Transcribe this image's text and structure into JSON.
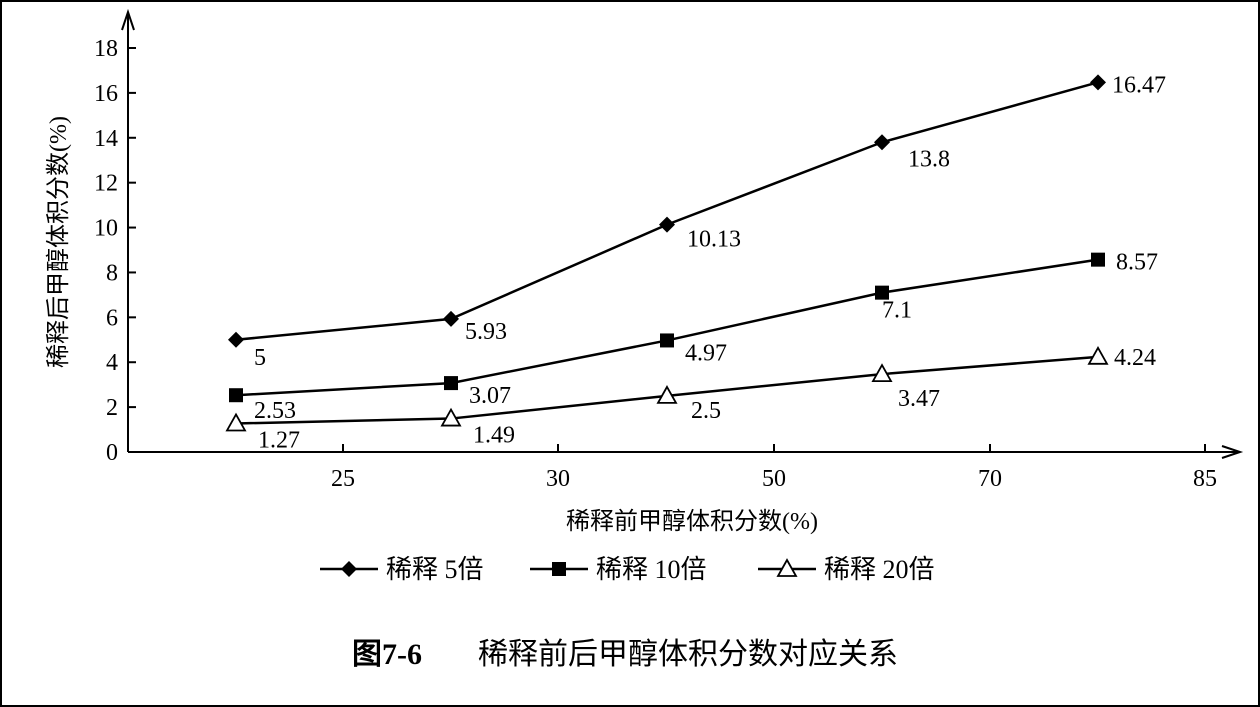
{
  "chart_data": {
    "type": "line",
    "title": "",
    "xlabel": "稀释前甲醇体积分数(%)",
    "ylabel": "稀释后甲醇体积分数(%)",
    "ylim": [
      0,
      18
    ],
    "yticks": [
      "0",
      "2",
      "4",
      "6",
      "8",
      "10",
      "12",
      "14",
      "16",
      "18"
    ],
    "x_tick_labels": [
      "25",
      "30",
      "50",
      "70",
      "85"
    ],
    "x_points": [
      "",
      "",
      "",
      "",
      ""
    ],
    "series": [
      {
        "name": "稀释 5倍",
        "marker": "diamond-filled",
        "values": [
          5,
          5.93,
          10.13,
          13.8,
          16.47
        ],
        "labels": [
          "5",
          "5.93",
          "10.13",
          "13.8",
          "16.47"
        ]
      },
      {
        "name": "稀释 10倍",
        "marker": "square-filled",
        "values": [
          2.53,
          3.07,
          4.97,
          7.1,
          8.57
        ],
        "labels": [
          "2.53",
          "3.07",
          "4.97",
          "7.1",
          "8.57"
        ]
      },
      {
        "name": "稀释 20倍",
        "marker": "triangle-open",
        "values": [
          1.27,
          1.49,
          2.5,
          3.47,
          4.24
        ],
        "labels": [
          "1.27",
          "1.49",
          "2.5",
          "3.47",
          "4.24"
        ]
      }
    ],
    "legend_position": "bottom",
    "grid": false
  },
  "caption": {
    "fig_num": "图7-6",
    "text": "稀释前后甲醇体积分数对应关系"
  },
  "colors": {
    "line": "#000000",
    "background": "#ffffff"
  }
}
